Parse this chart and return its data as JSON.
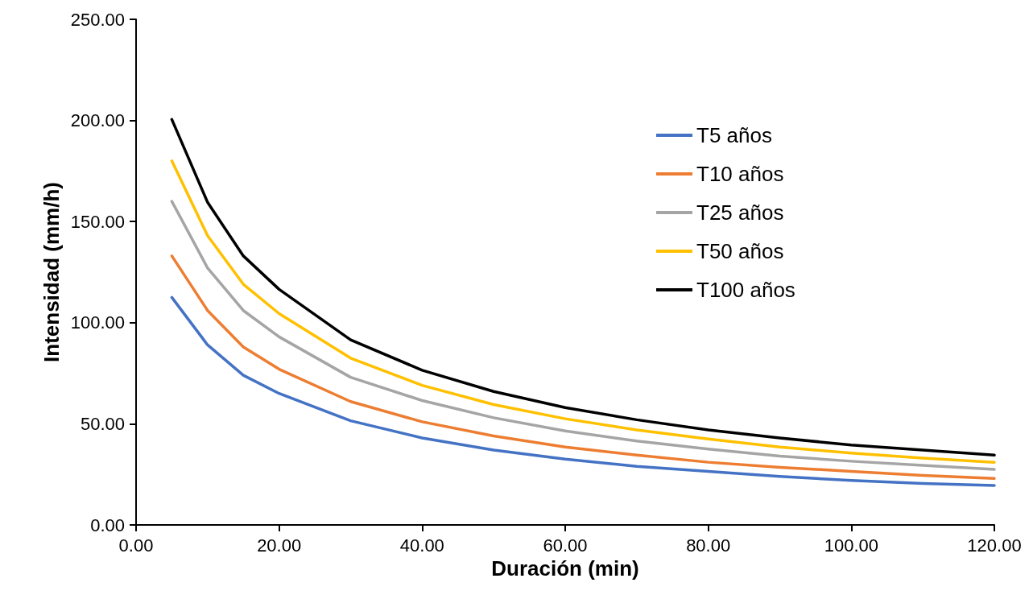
{
  "chart_data": {
    "type": "line",
    "xlabel": "Duración (min)",
    "ylabel": "Intensidad (mm/h)",
    "x": [
      5,
      10,
      15,
      20,
      30,
      40,
      50,
      60,
      70,
      80,
      90,
      100,
      110,
      120
    ],
    "series": [
      {
        "name": "T5 años",
        "color": "#4472c4",
        "values": [
          112.5,
          89,
          74,
          65,
          51.5,
          43,
          37,
          32.5,
          29,
          26.5,
          24,
          22,
          20.5,
          19.5
        ]
      },
      {
        "name": "T10 años",
        "color": "#ed7d31",
        "values": [
          133,
          106,
          88,
          77,
          61,
          51,
          44,
          38.5,
          34.5,
          31,
          28.5,
          26.5,
          24.5,
          23
        ]
      },
      {
        "name": "T25 años",
        "color": "#a5a5a5",
        "values": [
          160,
          127,
          106,
          93,
          73,
          61.5,
          53,
          46.5,
          41.5,
          37.5,
          34,
          31.5,
          29.5,
          27.5
        ]
      },
      {
        "name": "T50 años",
        "color": "#ffc000",
        "values": [
          180,
          143,
          119,
          104.5,
          82.5,
          69,
          59.5,
          52.5,
          47,
          42.5,
          38.5,
          35.5,
          33,
          31
        ]
      },
      {
        "name": "T100 años",
        "color": "#000000",
        "values": [
          200.5,
          159.5,
          133,
          116.5,
          91.5,
          76.5,
          66,
          58,
          52,
          47,
          43,
          39.5,
          37,
          34.5
        ]
      }
    ],
    "xlim": [
      0,
      120
    ],
    "xticks": [
      {
        "value": 0,
        "label": "0.00"
      },
      {
        "value": 20,
        "label": "20.00"
      },
      {
        "value": 40,
        "label": "40.00"
      },
      {
        "value": 60,
        "label": "60.00"
      },
      {
        "value": 80,
        "label": "80.00"
      },
      {
        "value": 100,
        "label": "100.00"
      },
      {
        "value": 120,
        "label": "120.00"
      }
    ],
    "ylim": [
      0,
      250
    ],
    "yticks": [
      {
        "value": 0,
        "label": "0.00"
      },
      {
        "value": 50,
        "label": "50.00"
      },
      {
        "value": 100,
        "label": "100.00"
      },
      {
        "value": 150,
        "label": "150.00"
      },
      {
        "value": 200,
        "label": "200.00"
      },
      {
        "value": 250,
        "label": "250.00"
      }
    ],
    "grid": false,
    "legend": "top right",
    "marker": "none",
    "line_style": "solid"
  }
}
